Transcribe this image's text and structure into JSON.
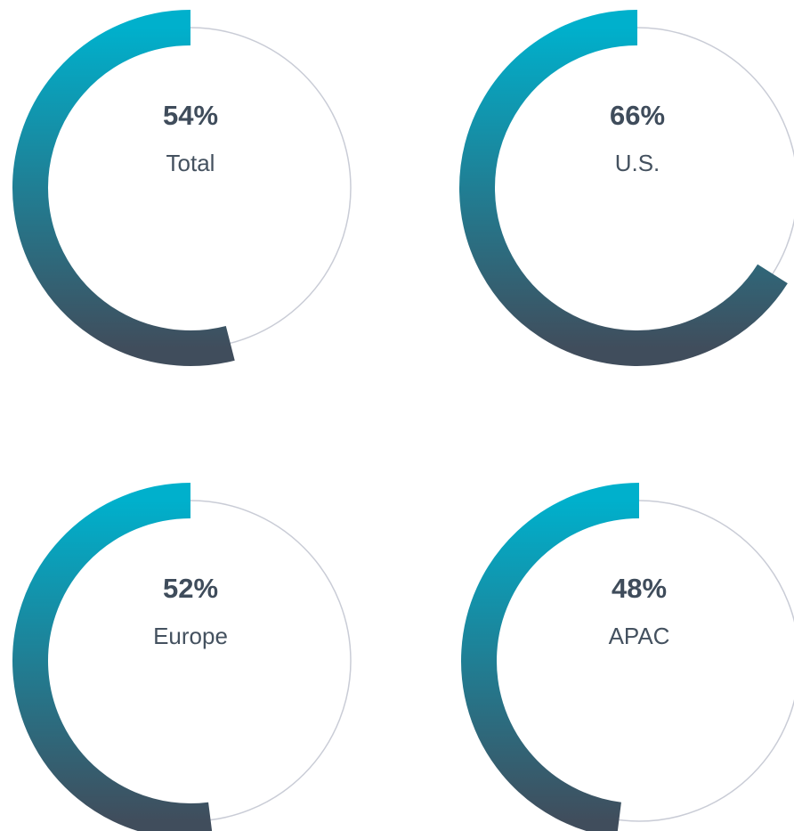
{
  "chart_data": [
    {
      "type": "gauge",
      "categories": [
        "Total"
      ],
      "values": [
        54
      ],
      "value_labels": [
        "54%"
      ],
      "color_start": "#00b0cc",
      "color_end": "#404d5c",
      "track_color": "#c9ccd6"
    },
    {
      "type": "gauge",
      "categories": [
        "U.S."
      ],
      "values": [
        66
      ],
      "value_labels": [
        "66%"
      ],
      "color_start": "#00b0cc",
      "color_end": "#404d5c",
      "track_color": "#c9ccd6"
    },
    {
      "type": "gauge",
      "categories": [
        "Europe"
      ],
      "values": [
        52
      ],
      "value_labels": [
        "52%"
      ],
      "color_start": "#00b0cc",
      "color_end": "#404d5c",
      "track_color": "#c9ccd6"
    },
    {
      "type": "gauge",
      "categories": [
        "APAC"
      ],
      "values": [
        48
      ],
      "value_labels": [
        "48%"
      ],
      "color_start": "#00b0cc",
      "color_end": "#404d5c",
      "track_color": "#c9ccd6"
    }
  ]
}
